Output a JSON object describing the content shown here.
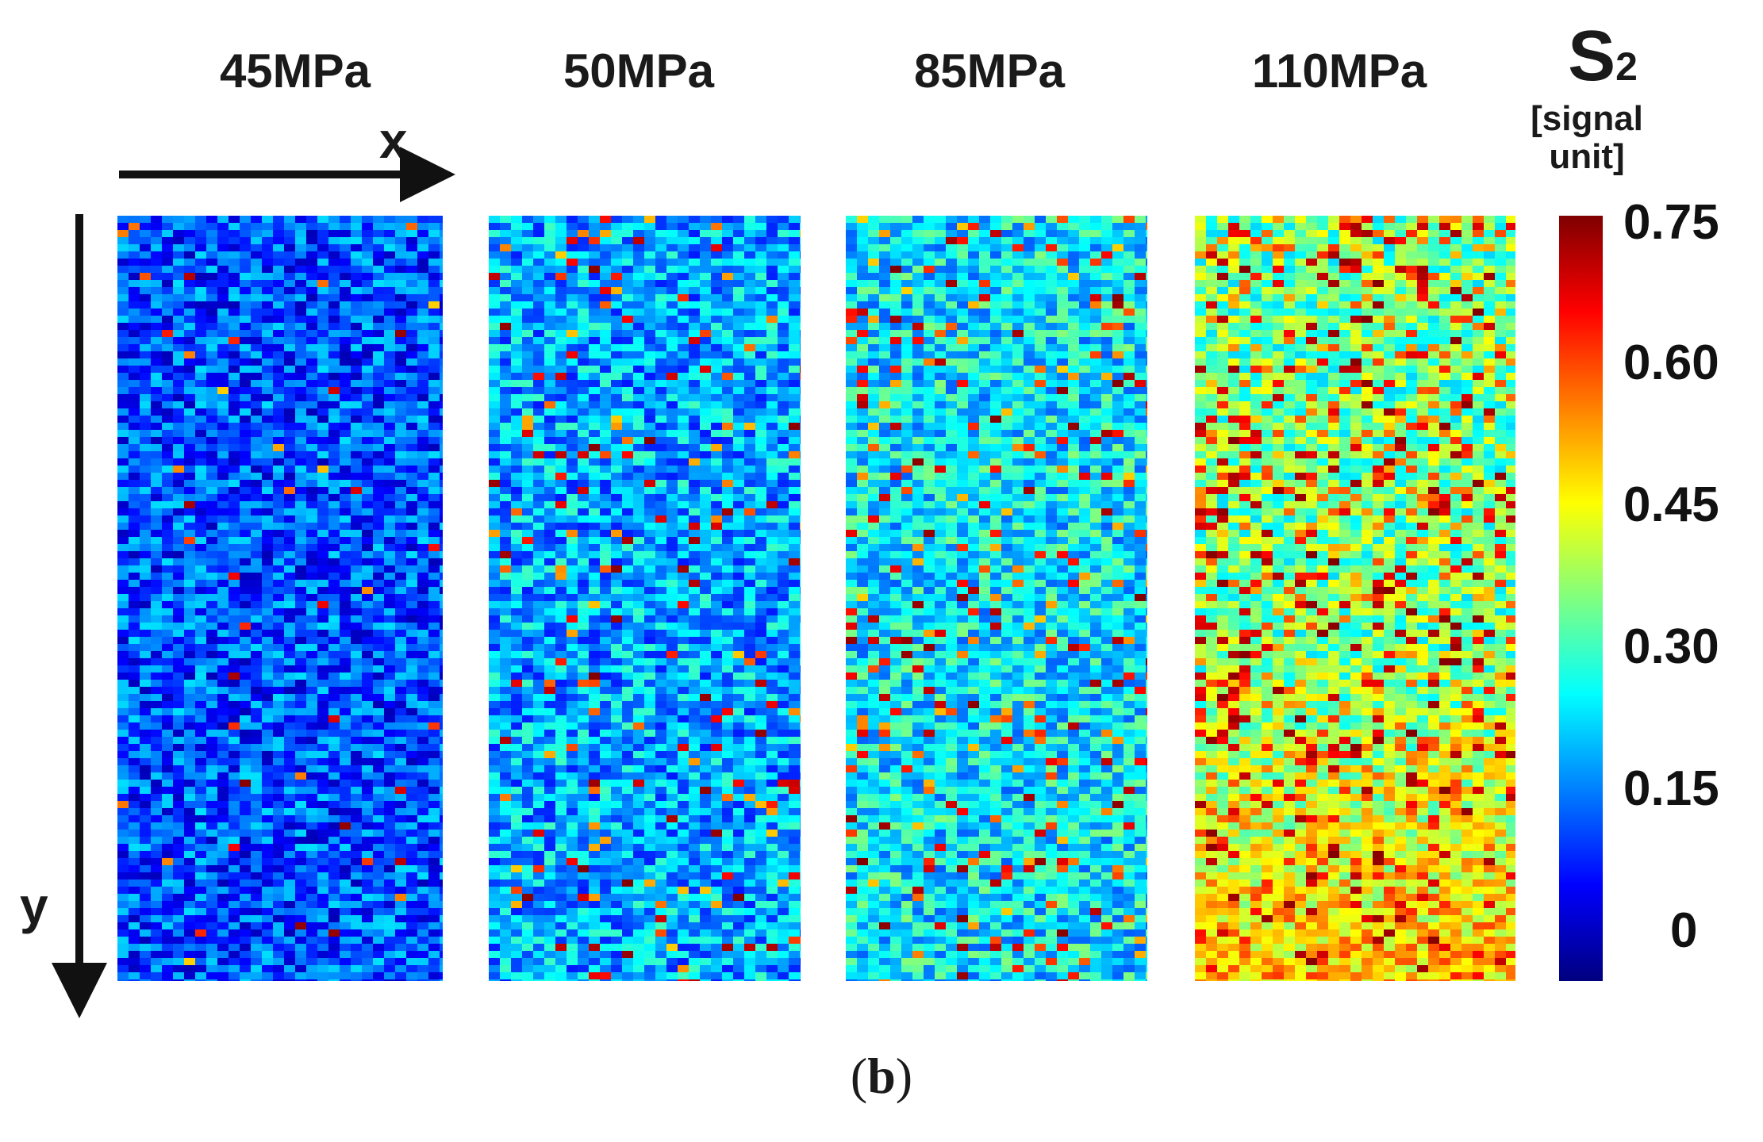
{
  "chart_data": {
    "type": "heatmap",
    "variable_symbol": "S",
    "variable_subscript": "2",
    "colorbar_unit": "[signal unit]",
    "colorbar_unit_line1": "[signal",
    "colorbar_unit_line2": "unit]",
    "colorbar_range": [
      0,
      0.75
    ],
    "colorbar_ticks": [
      "0.75",
      "0.60",
      "0.45",
      "0.30",
      "0.15",
      "0"
    ],
    "colormap": "jet",
    "x_axis_label": "x",
    "y_axis_label": "y",
    "panels": [
      {
        "title": "45MPa",
        "mean_level": 0.15,
        "hotspot_fraction": 0.01
      },
      {
        "title": "50MPa",
        "mean_level": 0.22,
        "hotspot_fraction": 0.05
      },
      {
        "title": "85MPa",
        "mean_level": 0.27,
        "hotspot_fraction": 0.1
      },
      {
        "title": "110MPa",
        "mean_level": 0.36,
        "hotspot_fraction": 0.22
      }
    ],
    "caption_open": "(",
    "caption_letter": "b",
    "caption_close": ")"
  },
  "colors": {
    "axis": "#111111",
    "background": "#ffffff"
  }
}
